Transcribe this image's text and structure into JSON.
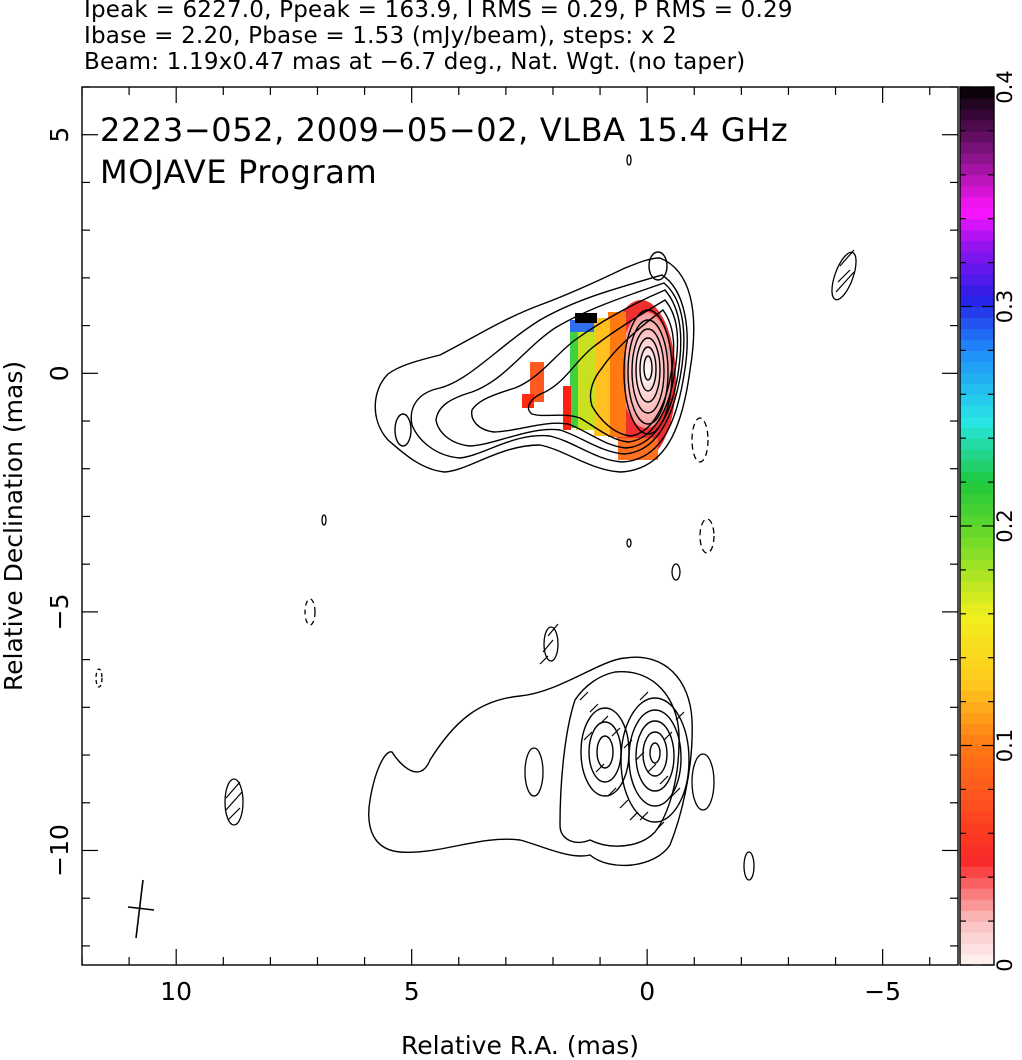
{
  "header": {
    "line1": "Ipeak = 6227.0, Ppeak = 163.9, I RMS = 0.29, P RMS = 0.29",
    "line2": "Ibase = 2.20, Pbase = 1.53 (mJy/beam), steps: x 2",
    "line3": "Beam: 1.19x0.47 mas at −6.7 deg., Nat. Wgt. (no taper)"
  },
  "chart_data": {
    "type": "contour map",
    "title": "2223−052, 2009−05−02, VLBA 15.4 GHz",
    "subtitle": "MOJAVE Program",
    "xlabel": "Relative R.A. (mas)",
    "ylabel": "Relative Declination (mas)",
    "xlim": [
      12,
      -6.6
    ],
    "ylim": [
      -12.4,
      6.0
    ],
    "x_major_ticks": [
      10,
      5,
      0,
      -5
    ],
    "x_tick_labels": [
      "10",
      "5",
      "0",
      "−5"
    ],
    "y_major_ticks": [
      5,
      0,
      -5,
      -10
    ],
    "y_tick_labels": [
      "5",
      "0",
      "−5",
      "−10"
    ],
    "x_minor_step": 1,
    "y_minor_step": 1,
    "colorbar": {
      "label_values": [
        0,
        0.1,
        0.2,
        0.3,
        0.4
      ],
      "tick_labels": [
        "0",
        "0.1",
        "0.2",
        "0.3",
        "0.4"
      ],
      "range": [
        0,
        0.4
      ]
    },
    "beam": {
      "major_mas": 1.19,
      "minor_mas": 0.47,
      "pa_deg": -6.7,
      "center": [
        10.7,
        -11.2
      ]
    },
    "core": {
      "x": 0,
      "y": 0
    },
    "images": [
      {
        "name": "total intensity",
        "center": [
          0,
          0
        ]
      },
      {
        "name": "polarization",
        "center": [
          0,
          -8.2
        ]
      }
    ]
  }
}
